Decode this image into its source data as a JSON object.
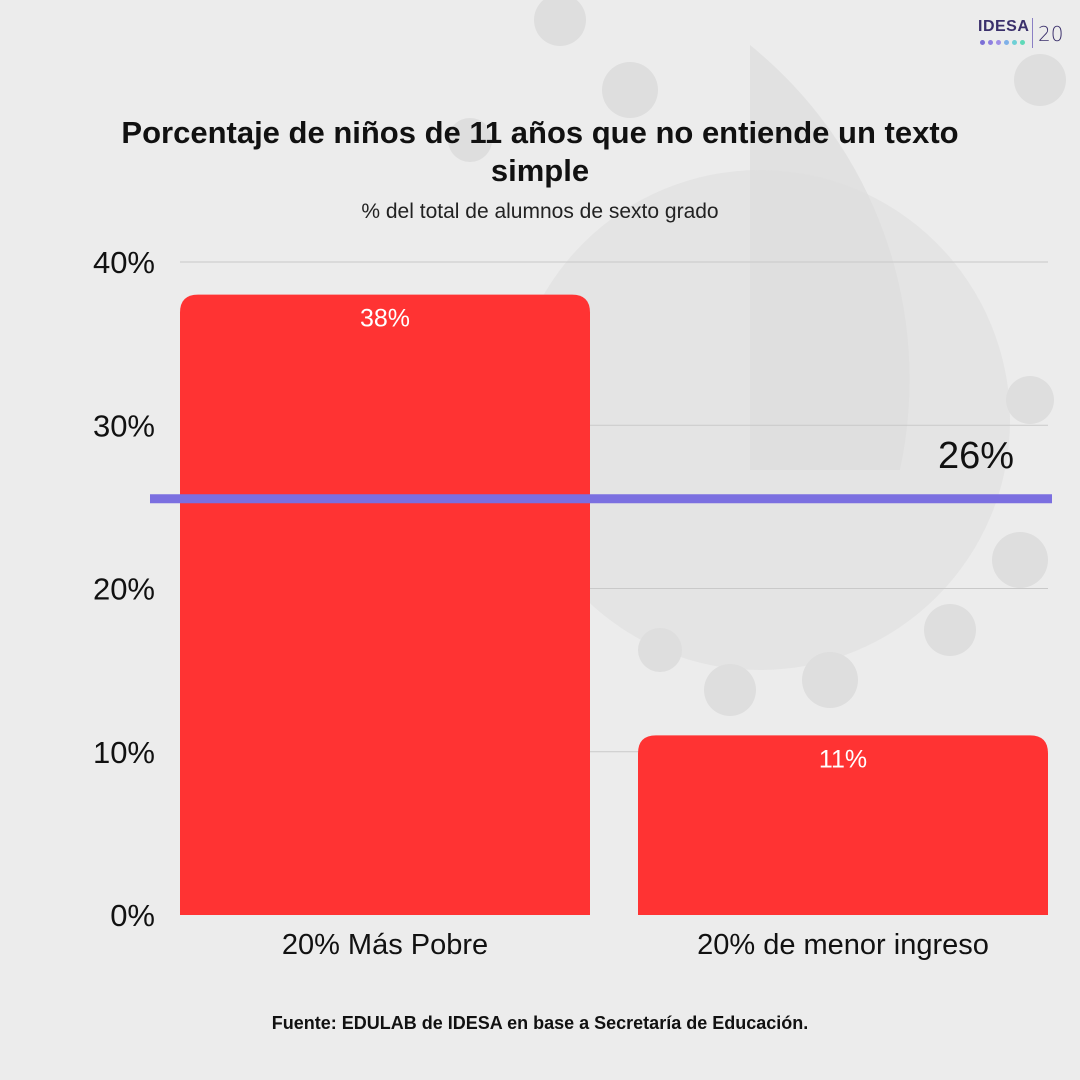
{
  "logo": {
    "brand": "IDESA",
    "number": "20",
    "dot_colors": [
      "#7b6fd6",
      "#8e7fe0",
      "#a08fe6",
      "#7fb0e8",
      "#6fd0d6",
      "#5fd9b8"
    ]
  },
  "chart_data": {
    "type": "bar",
    "title": "Porcentaje de niños de 11 años que no entiende un texto simple",
    "subtitle": "% del total de alumnos de sexto grado",
    "categories": [
      "20% Más Pobre",
      "20% de menor ingreso"
    ],
    "values": [
      38,
      11
    ],
    "data_labels": [
      "38%",
      "11%"
    ],
    "ylim": [
      0,
      40
    ],
    "yticks": [
      0,
      10,
      20,
      30,
      40
    ],
    "ytick_labels": [
      "0%",
      "10%",
      "20%",
      "30%",
      "40%"
    ],
    "xlabel": "",
    "ylabel": "",
    "grid": true,
    "bar_color": "#ff3333",
    "reference_line": {
      "value": 25.5,
      "label": "26%",
      "color": "#7b6fe0"
    }
  },
  "source": "Fuente:  EDULAB de IDESA en base a Secretaría de Educación."
}
